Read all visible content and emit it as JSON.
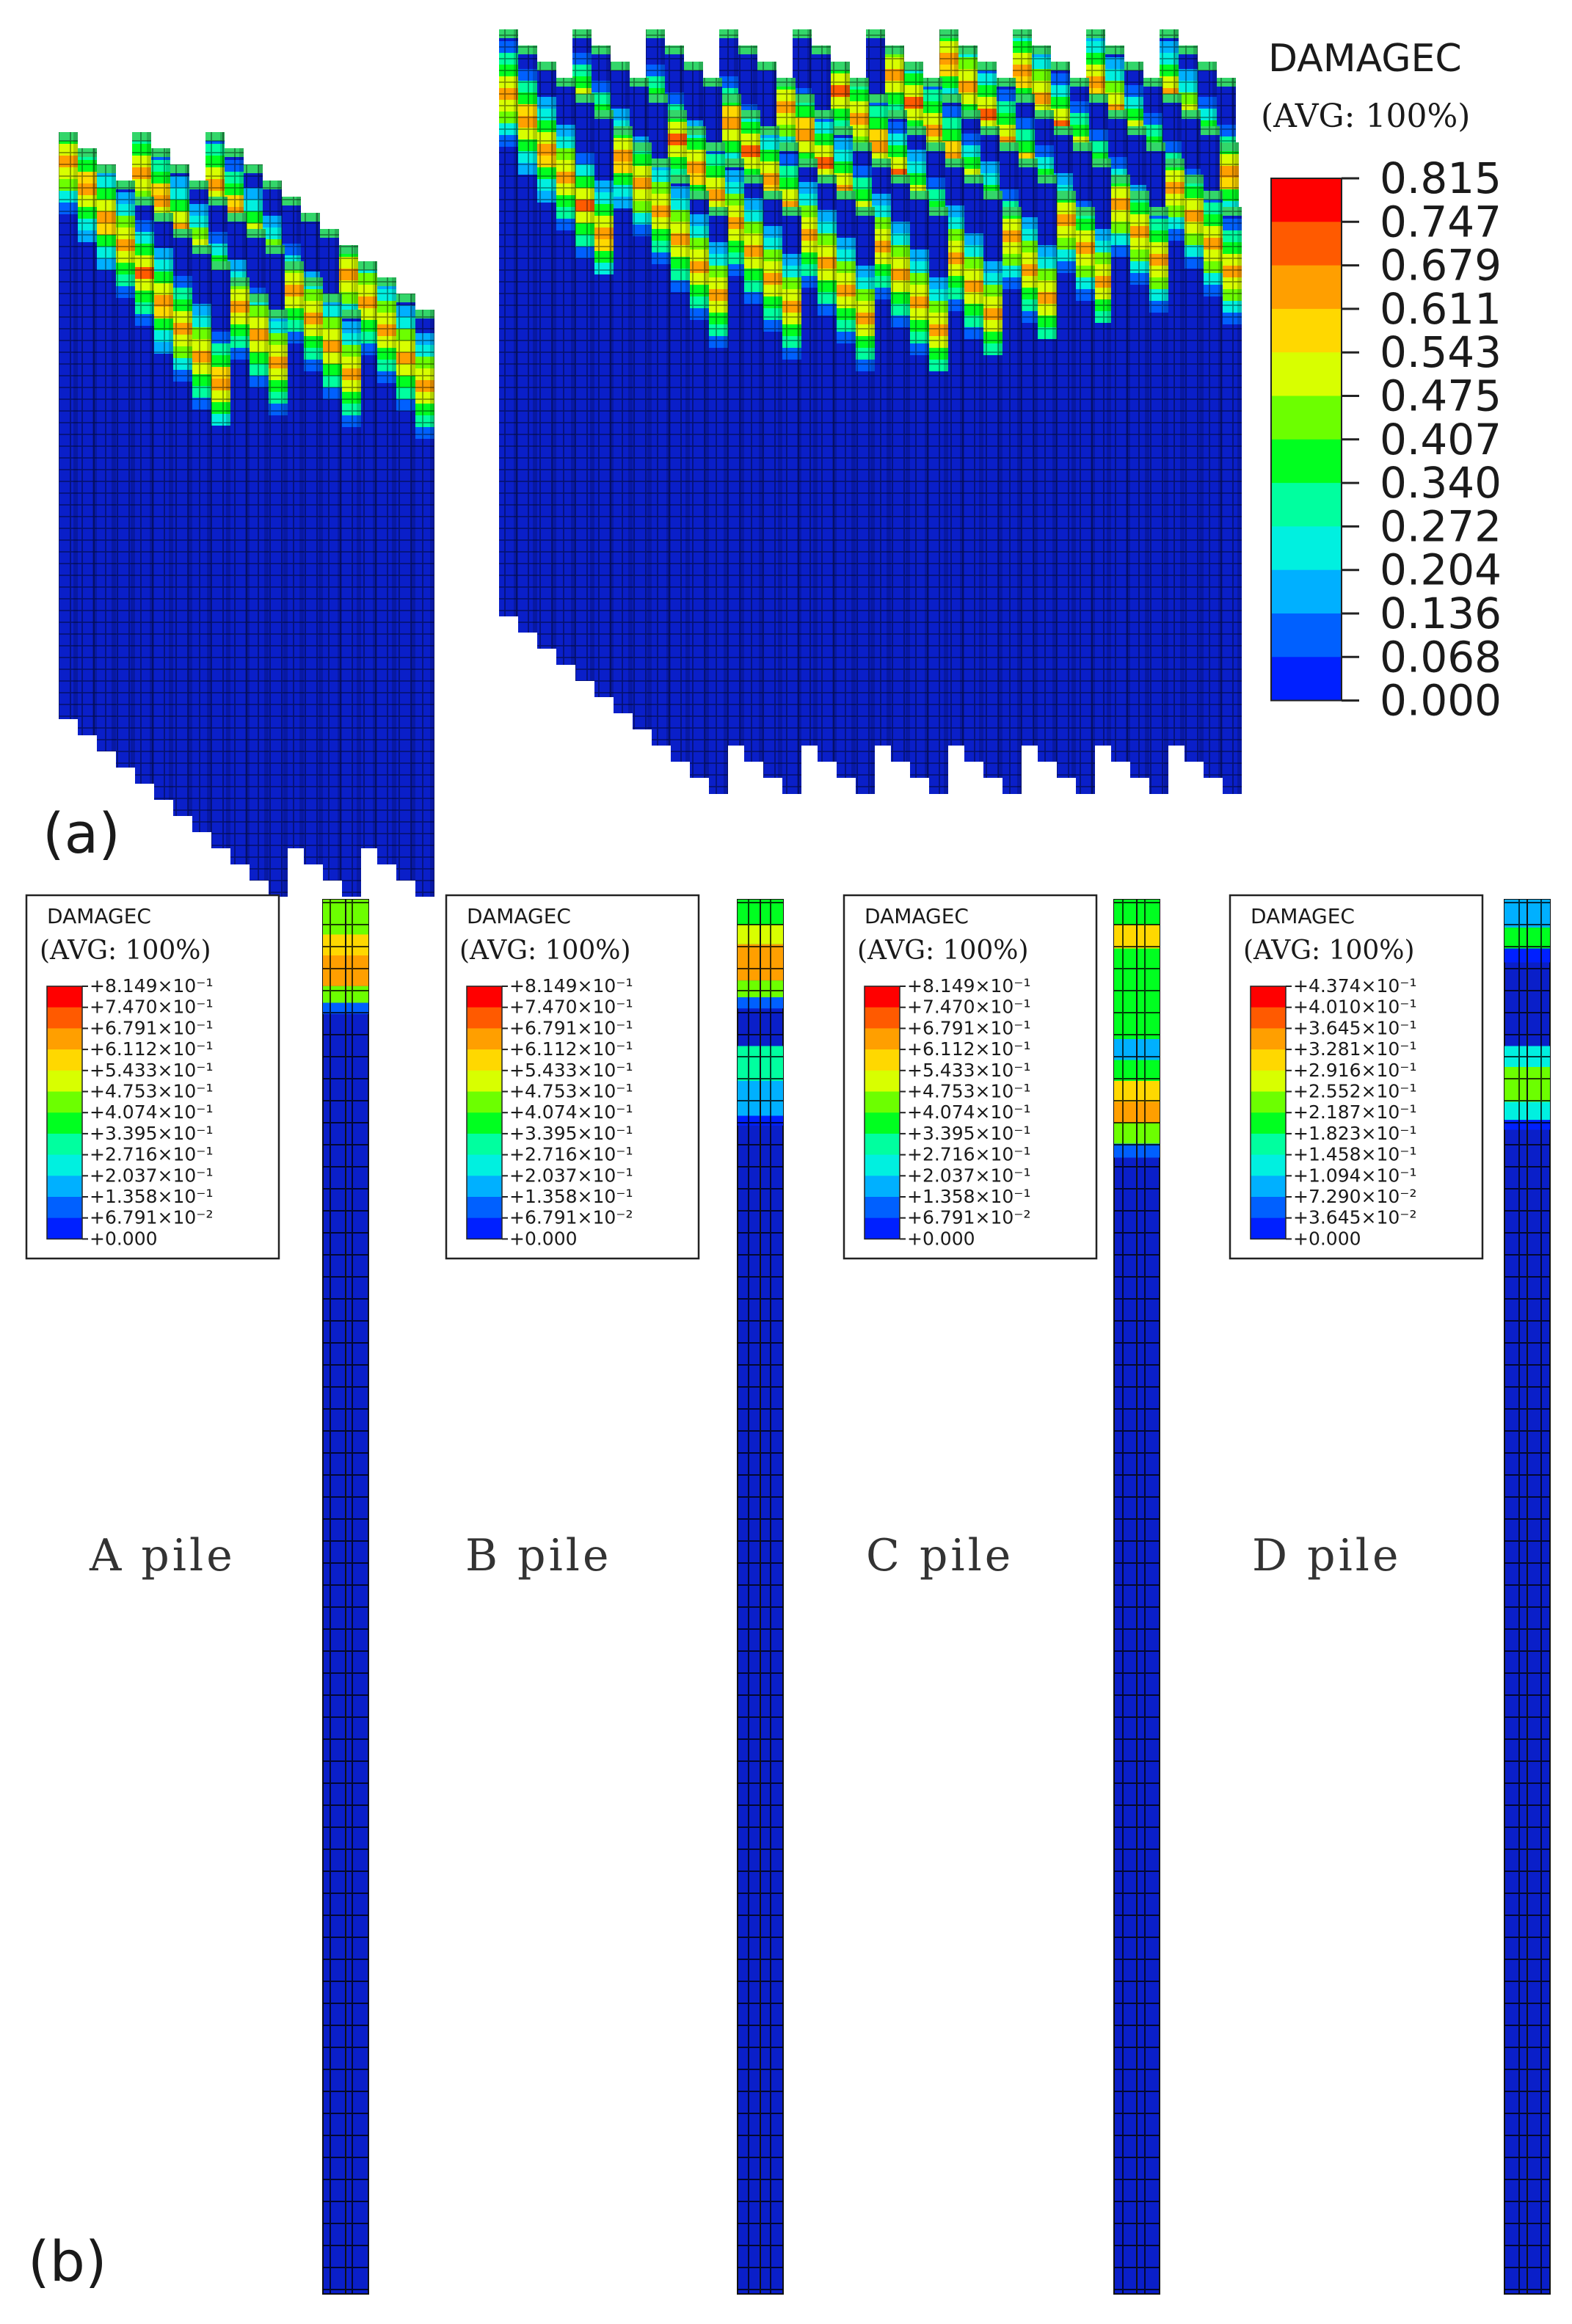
{
  "panel_a": {
    "label": "(a)",
    "legend": {
      "title": "DAMAGEC",
      "subtitle": "(AVG: 100%)",
      "values": [
        "0.815",
        "0.747",
        "0.679",
        "0.611",
        "0.543",
        "0.475",
        "0.407",
        "0.340",
        "0.272",
        "0.204",
        "0.136",
        "0.068",
        "0.000"
      ],
      "colors": [
        "#ff0000",
        "#ff5a00",
        "#ff9f00",
        "#ffd800",
        "#d8ff00",
        "#6cff00",
        "#00ff20",
        "#00ff9f",
        "#00f0e0",
        "#00b0ff",
        "#0060ff",
        "#0020ff",
        "#0000d8"
      ]
    },
    "max_damage": 0.815
  },
  "panel_b": {
    "label": "(b)",
    "piles": [
      {
        "name": "A pile",
        "legend_title": "DAMAGEC",
        "legend_subtitle": "(AVG: 100%)",
        "values": [
          "+8.149×10⁻¹",
          "+7.470×10⁻¹",
          "+6.791×10⁻¹",
          "+6.112×10⁻¹",
          "+5.433×10⁻¹",
          "+4.753×10⁻¹",
          "+4.074×10⁻¹",
          "+3.395×10⁻¹",
          "+2.716×10⁻¹",
          "+2.037×10⁻¹",
          "+1.358×10⁻¹",
          "+6.791×10⁻²",
          "+0.000"
        ]
      },
      {
        "name": "B pile",
        "legend_title": "DAMAGEC",
        "legend_subtitle": "(AVG: 100%)",
        "values": [
          "+8.149×10⁻¹",
          "+7.470×10⁻¹",
          "+6.791×10⁻¹",
          "+6.112×10⁻¹",
          "+5.433×10⁻¹",
          "+4.753×10⁻¹",
          "+4.074×10⁻¹",
          "+3.395×10⁻¹",
          "+2.716×10⁻¹",
          "+2.037×10⁻¹",
          "+1.358×10⁻¹",
          "+6.791×10⁻²",
          "+0.000"
        ]
      },
      {
        "name": "C pile",
        "legend_title": "DAMAGEC",
        "legend_subtitle": "(AVG: 100%)",
        "values": [
          "+8.149×10⁻¹",
          "+7.470×10⁻¹",
          "+6.791×10⁻¹",
          "+6.112×10⁻¹",
          "+5.433×10⁻¹",
          "+4.753×10⁻¹",
          "+4.074×10⁻¹",
          "+3.395×10⁻¹",
          "+2.716×10⁻¹",
          "+2.037×10⁻¹",
          "+1.358×10⁻¹",
          "+6.791×10⁻²",
          "+0.000"
        ]
      },
      {
        "name": "D pile",
        "legend_title": "DAMAGEC",
        "legend_subtitle": "(AVG: 100%)",
        "values": [
          "+4.374×10⁻¹",
          "+4.010×10⁻¹",
          "+3.645×10⁻¹",
          "+3.281×10⁻¹",
          "+2.916×10⁻¹",
          "+2.552×10⁻¹",
          "+2.187×10⁻¹",
          "+1.823×10⁻¹",
          "+1.458×10⁻¹",
          "+1.094×10⁻¹",
          "+7.290×10⁻²",
          "+3.645×10⁻²",
          "+0.000"
        ]
      }
    ]
  }
}
